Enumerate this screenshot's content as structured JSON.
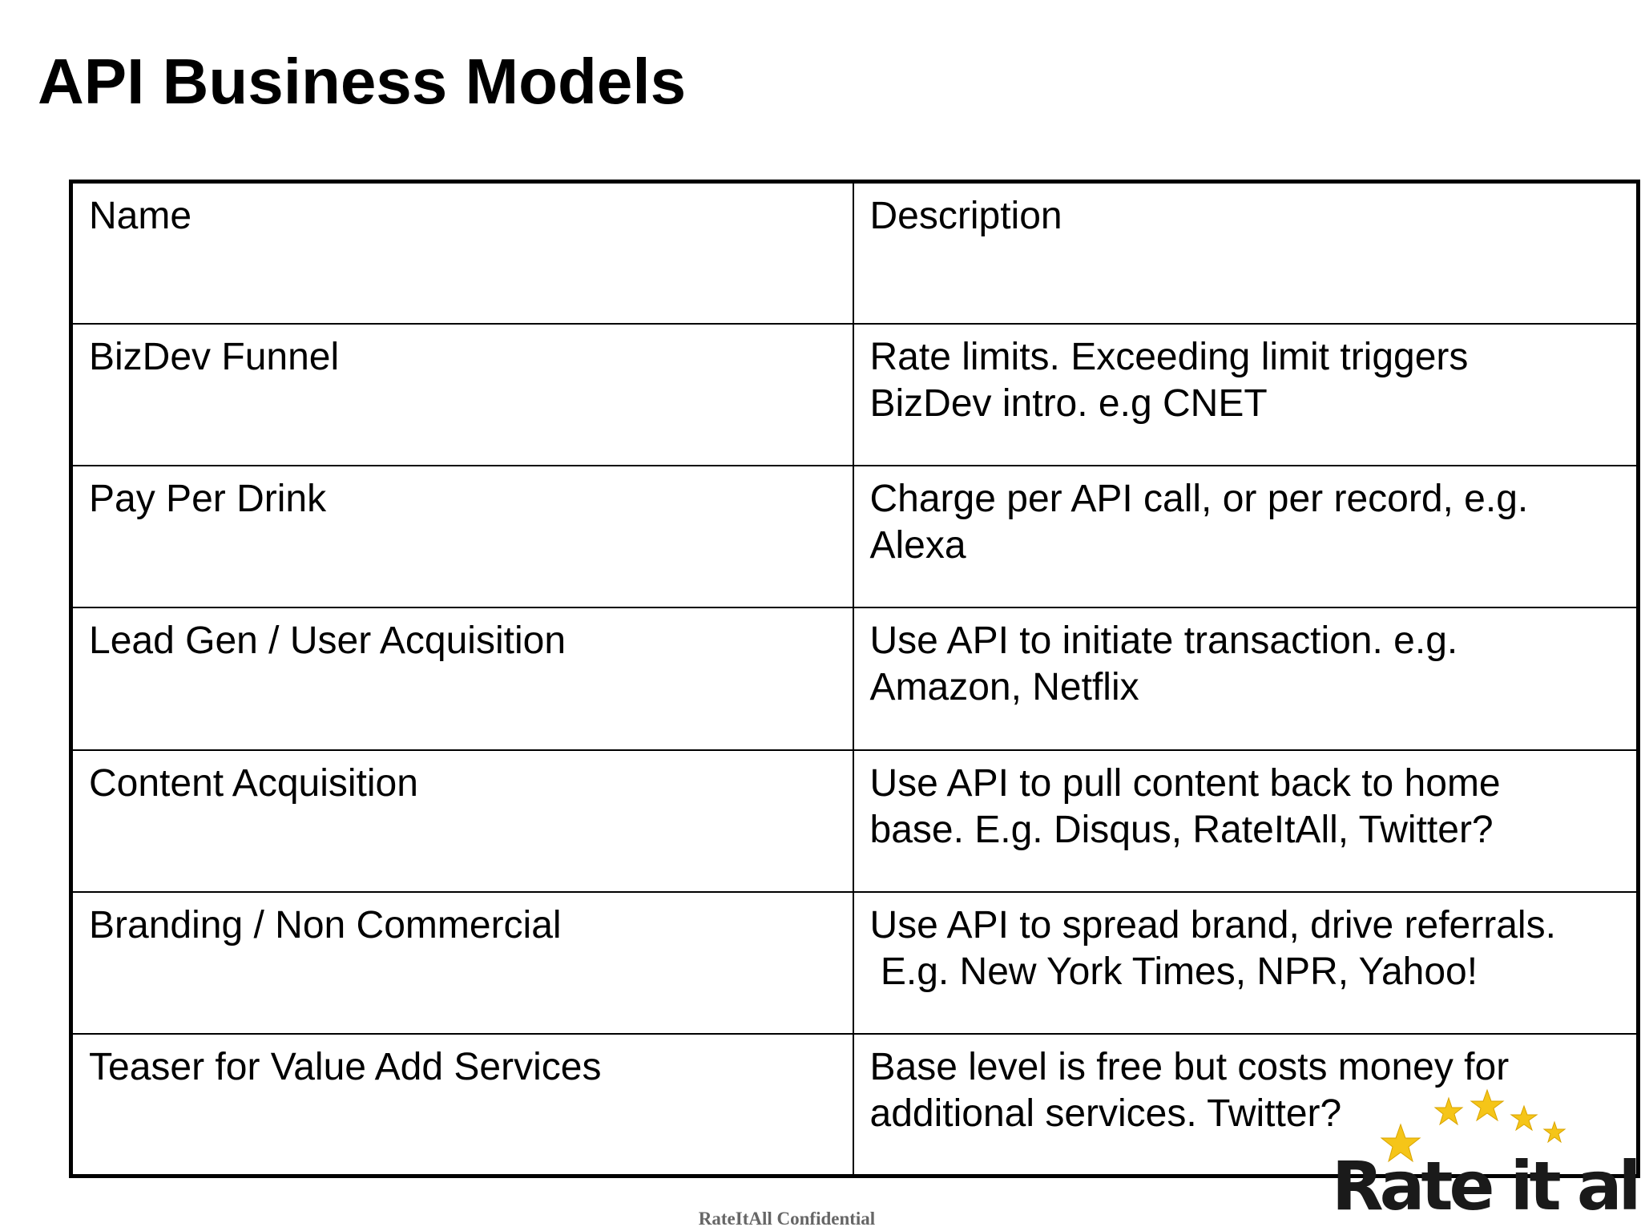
{
  "slide": {
    "title": "API Business Models"
  },
  "table": {
    "headers": [
      "Name",
      "Description"
    ],
    "rows": [
      {
        "name": "BizDev Funnel",
        "description_lines": [
          "Rate limits.  Exceeding limit triggers",
          "BizDev intro. e.g CNET"
        ]
      },
      {
        "name": "Pay Per Drink",
        "description_lines": [
          "Charge per API call, or per record, e.g.",
          "Alexa"
        ]
      },
      {
        "name": "Lead Gen / User Acquisition",
        "description_lines": [
          "Use API to initiate transaction.  e.g.",
          "Amazon, Netflix"
        ]
      },
      {
        "name": "Content Acquisition",
        "description_lines": [
          "Use API to pull content back to home",
          "base.  E.g. Disqus, RateItAll, Twitter?"
        ]
      },
      {
        "name": "Branding / Non Commercial",
        "description_lines": [
          "Use API to spread brand, drive referrals.",
          " E.g. New York Times, NPR, Yahoo!"
        ]
      },
      {
        "name": "Teaser for Value Add Services",
        "description_lines": [
          "Base level is free but costs money for",
          "additional services.  Twitter?"
        ]
      }
    ]
  },
  "footer": {
    "confidential": "RateItAll Confidential"
  },
  "logo": {
    "text": "Rate it all!",
    "star_color": "#f5c518"
  }
}
